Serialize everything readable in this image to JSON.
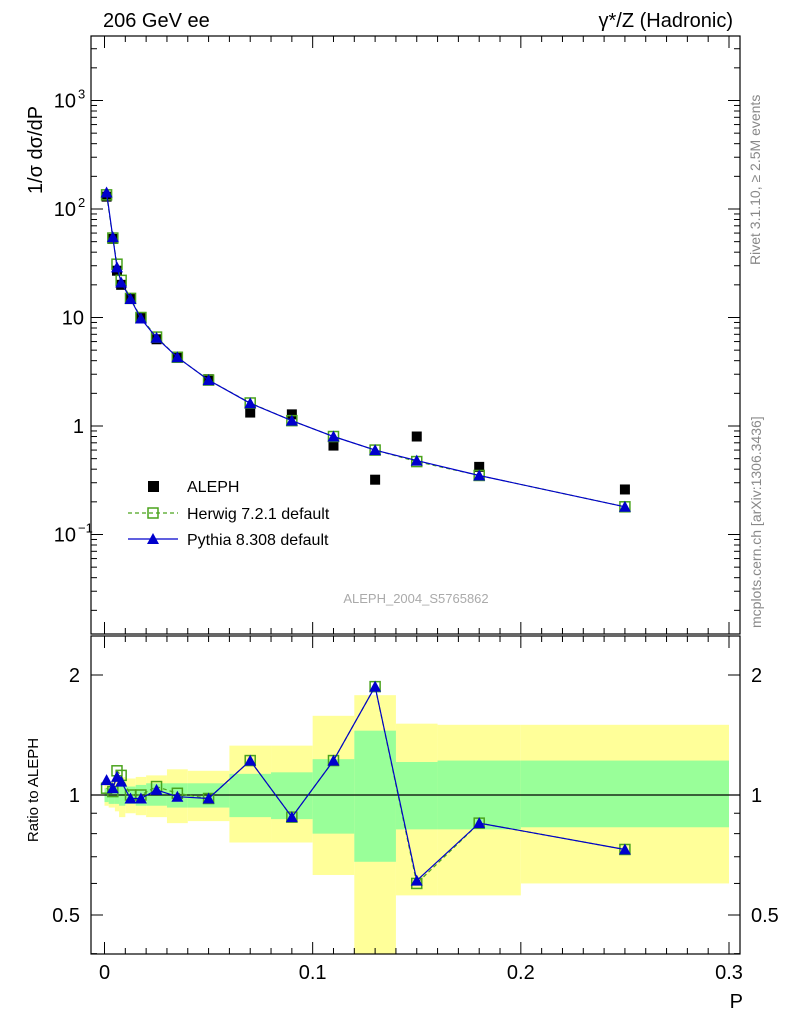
{
  "header": {
    "left": "206 GeV ee",
    "right": "γ*/Z (Hadronic)"
  },
  "side": {
    "rivet": "Rivet 3.1.10, ≥ 2.5M events",
    "mcplots": "mcplots.cern.ch [arXiv:1306.3436]"
  },
  "watermark": "ALEPH_2004_S5765862",
  "chart_data": [
    {
      "type": "scatter",
      "panel": "main",
      "ylabel": "1/σ  dσ/dP",
      "yscale": "log",
      "ylim": [
        0.01,
        4000
      ],
      "xlim": [
        -0.005,
        0.3
      ],
      "ytick_labels": [
        "10^-1",
        "1",
        "10",
        "10^2",
        "10^3"
      ],
      "legend_placement": "left, lower middle",
      "series": [
        {
          "name": "ALEPH",
          "style": "black filled squares",
          "color": "#000000",
          "x": [
            0.001,
            0.004,
            0.006,
            0.008,
            0.0125,
            0.0175,
            0.025,
            0.035,
            0.05,
            0.07,
            0.09,
            0.11,
            0.13,
            0.15,
            0.18,
            0.25
          ],
          "y": [
            130,
            53,
            27,
            20,
            15,
            10,
            6.3,
            4.3,
            2.7,
            1.33,
            1.28,
            0.66,
            0.32,
            0.8,
            0.42,
            0.26
          ]
        },
        {
          "name": "Herwig 7.2.1 default",
          "style": "green dashed line, open squares",
          "color": "#4aa31c",
          "x": [
            0.001,
            0.004,
            0.006,
            0.008,
            0.0125,
            0.0175,
            0.025,
            0.035,
            0.05,
            0.07,
            0.09,
            0.11,
            0.13,
            0.15,
            0.18,
            0.25
          ],
          "y": [
            135,
            54,
            31,
            22,
            15,
            10,
            6.6,
            4.3,
            2.65,
            1.63,
            1.12,
            0.8,
            0.6,
            0.47,
            0.35,
            0.18
          ]
        },
        {
          "name": "Pythia 8.308 default",
          "style": "blue solid line, filled triangles",
          "color": "#0000cc",
          "x": [
            0.001,
            0.004,
            0.006,
            0.008,
            0.0125,
            0.0175,
            0.025,
            0.035,
            0.05,
            0.07,
            0.09,
            0.11,
            0.13,
            0.15,
            0.18,
            0.25
          ],
          "y": [
            142,
            55,
            29,
            21,
            14.8,
            9.8,
            6.5,
            4.3,
            2.65,
            1.62,
            1.12,
            0.8,
            0.6,
            0.48,
            0.35,
            0.18
          ]
        }
      ]
    },
    {
      "type": "line",
      "panel": "ratio",
      "ylabel": "Ratio to ALEPH",
      "xlabel": "P",
      "yscale": "log",
      "ylim": [
        0.35,
        2.3
      ],
      "xlim": [
        -0.005,
        0.3
      ],
      "xticks": [
        0,
        0.1,
        0.2,
        0.3
      ],
      "yticks": [
        0.5,
        1,
        2
      ],
      "xtick_labels": [
        "0",
        "0.1",
        "0.2",
        "0.3"
      ],
      "ytick_labels": [
        "0.5",
        "1",
        "2"
      ],
      "bands": {
        "yellow_color": "#ffff99",
        "green_color": "#99ff99",
        "bins": [
          {
            "x0": 0.0,
            "x1": 0.002,
            "y_lo": 0.94,
            "y_hi": 1.07,
            "g_lo": 0.96,
            "g_hi": 1.04
          },
          {
            "x0": 0.002,
            "x1": 0.005,
            "y_lo": 0.93,
            "y_hi": 1.08,
            "g_lo": 0.95,
            "g_hi": 1.05
          },
          {
            "x0": 0.005,
            "x1": 0.007,
            "y_lo": 0.91,
            "y_hi": 1.09,
            "g_lo": 0.95,
            "g_hi": 1.05
          },
          {
            "x0": 0.007,
            "x1": 0.01,
            "y_lo": 0.88,
            "y_hi": 1.11,
            "g_lo": 0.94,
            "g_hi": 1.06
          },
          {
            "x0": 0.01,
            "x1": 0.015,
            "y_lo": 0.9,
            "y_hi": 1.1,
            "g_lo": 0.95,
            "g_hi": 1.05
          },
          {
            "x0": 0.015,
            "x1": 0.02,
            "y_lo": 0.89,
            "y_hi": 1.11,
            "g_lo": 0.94,
            "g_hi": 1.06
          },
          {
            "x0": 0.02,
            "x1": 0.03,
            "y_lo": 0.88,
            "y_hi": 1.12,
            "g_lo": 0.94,
            "g_hi": 1.07
          },
          {
            "x0": 0.03,
            "x1": 0.04,
            "y_lo": 0.85,
            "y_hi": 1.16,
            "g_lo": 0.93,
            "g_hi": 1.07
          },
          {
            "x0": 0.04,
            "x1": 0.06,
            "y_lo": 0.86,
            "y_hi": 1.15,
            "g_lo": 0.93,
            "g_hi": 1.07
          },
          {
            "x0": 0.06,
            "x1": 0.08,
            "y_lo": 0.76,
            "y_hi": 1.33,
            "g_lo": 0.88,
            "g_hi": 1.13
          },
          {
            "x0": 0.08,
            "x1": 0.1,
            "y_lo": 0.76,
            "y_hi": 1.33,
            "g_lo": 0.87,
            "g_hi": 1.14
          },
          {
            "x0": 0.1,
            "x1": 0.12,
            "y_lo": 0.63,
            "y_hi": 1.58,
            "g_lo": 0.8,
            "g_hi": 1.23
          },
          {
            "x0": 0.12,
            "x1": 0.14,
            "y_lo": 0.35,
            "y_hi": 1.78,
            "g_lo": 0.68,
            "g_hi": 1.45
          },
          {
            "x0": 0.14,
            "x1": 0.16,
            "y_lo": 0.56,
            "y_hi": 1.51,
            "g_lo": 0.82,
            "g_hi": 1.21
          },
          {
            "x0": 0.16,
            "x1": 0.2,
            "y_lo": 0.56,
            "y_hi": 1.5,
            "g_lo": 0.82,
            "g_hi": 1.22
          },
          {
            "x0": 0.2,
            "x1": 0.3,
            "y_lo": 0.6,
            "y_hi": 1.5,
            "g_lo": 0.83,
            "g_hi": 1.22
          }
        ]
      },
      "series": [
        {
          "name": "Herwig 7.2.1 default",
          "style": "green dashed line, open squares",
          "color": "#4aa31c",
          "x": [
            0.001,
            0.004,
            0.006,
            0.008,
            0.0125,
            0.0175,
            0.025,
            0.035,
            0.05,
            0.07,
            0.09,
            0.11,
            0.13,
            0.15,
            0.18,
            0.25
          ],
          "y": [
            1.04,
            1.02,
            1.15,
            1.12,
            1.0,
            1.0,
            1.05,
            1.01,
            0.98,
            1.22,
            0.88,
            1.22,
            1.87,
            0.6,
            0.85,
            0.73
          ]
        },
        {
          "name": "Pythia 8.308 default",
          "style": "blue solid line, filled triangles",
          "color": "#0000cc",
          "x": [
            0.001,
            0.004,
            0.006,
            0.008,
            0.0125,
            0.0175,
            0.025,
            0.035,
            0.05,
            0.07,
            0.09,
            0.11,
            0.13,
            0.15,
            0.18,
            0.25
          ],
          "y": [
            1.09,
            1.04,
            1.11,
            1.08,
            0.98,
            0.98,
            1.03,
            0.99,
            0.98,
            1.22,
            0.88,
            1.22,
            1.87,
            0.61,
            0.85,
            0.73
          ]
        }
      ]
    }
  ]
}
